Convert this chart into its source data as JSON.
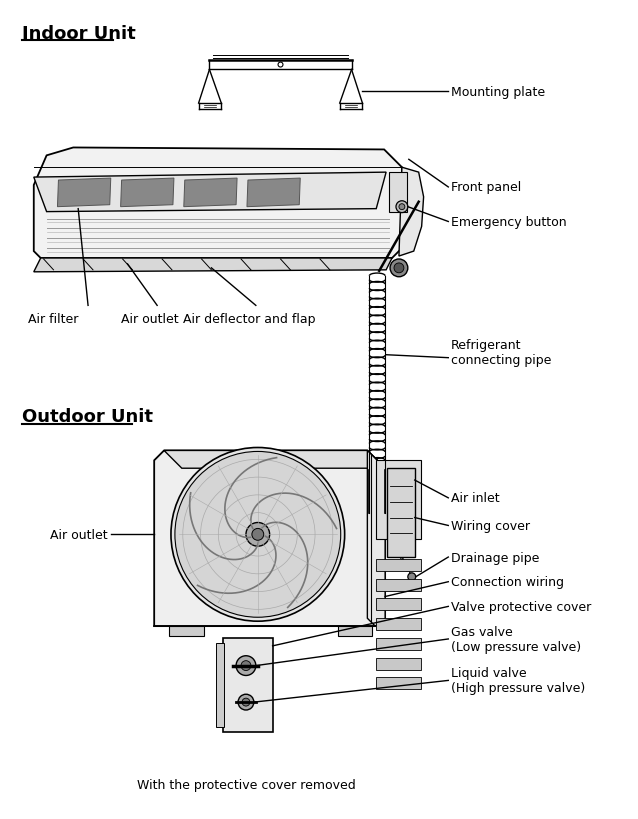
{
  "title_indoor": "Indoor Unit",
  "title_outdoor": "Outdoor Unit",
  "bg_color": "#ffffff",
  "text_color": "#000000",
  "line_color": "#000000",
  "labels": {
    "mounting_plate": "Mounting plate",
    "front_panel": "Front panel",
    "emergency_button": "Emergency button",
    "air_filter": "Air filter",
    "air_outlet_indoor": "Air outlet",
    "air_deflector": "Air deflector and flap",
    "refrigerant_pipe": "Refrigerant\nconnecting pipe",
    "air_inlet": "Air inlet",
    "wiring_cover": "Wiring cover",
    "drainage_pipe": "Drainage pipe",
    "connection_wiring": "Connection wiring",
    "valve_protective": "Valve protective cover",
    "gas_valve": "Gas valve\n(Low pressure valve)",
    "liquid_valve": "Liquid valve\n(High pressure valve)",
    "air_outlet_outdoor": "Air outlet",
    "caption": "With the protective cover removed"
  },
  "figsize": [
    6.38,
    8.2
  ],
  "dpi": 100
}
